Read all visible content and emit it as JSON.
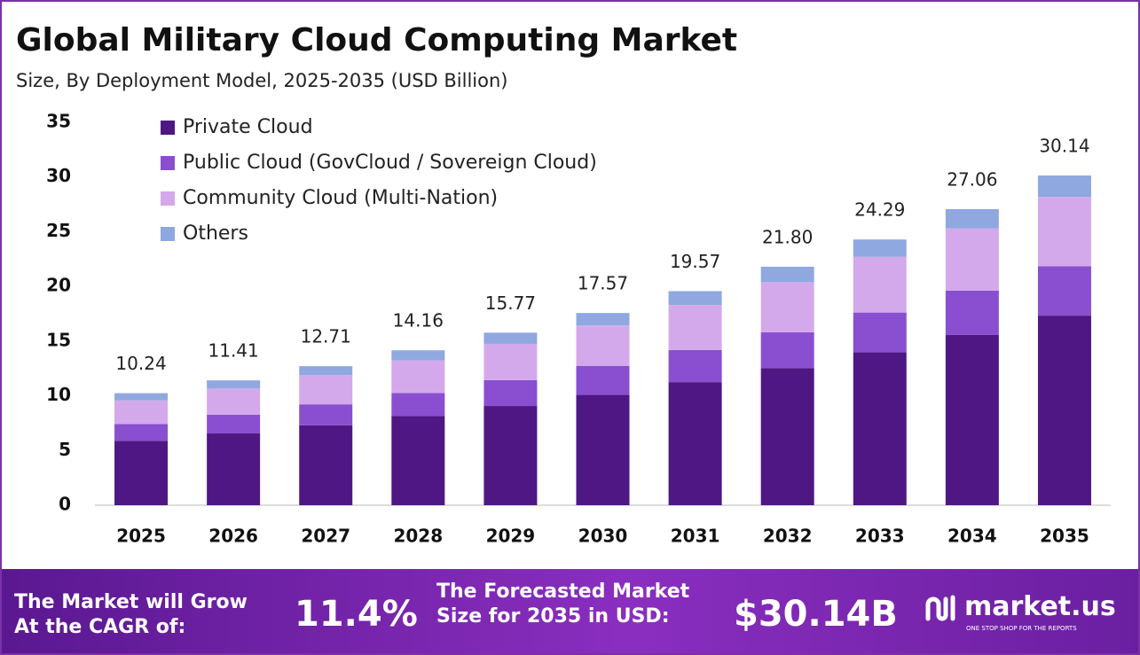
{
  "chart_data": {
    "type": "stacked-bar",
    "title": "Global Military Cloud Computing Market",
    "subtitle": "Size, By Deployment Model, 2025-2035 (USD Billion)",
    "categories": [
      "2025",
      "2026",
      "2027",
      "2028",
      "2029",
      "2030",
      "2031",
      "2032",
      "2033",
      "2034",
      "2035"
    ],
    "series": [
      {
        "name": "Private Cloud",
        "color": "#4f1783",
        "values": [
          5.89,
          6.56,
          7.31,
          8.14,
          9.07,
          10.1,
          11.25,
          12.54,
          13.97,
          15.56,
          17.33
        ]
      },
      {
        "name": "Public Cloud (GovCloud / Sovereign Cloud)",
        "color": "#8a4fd0",
        "values": [
          1.54,
          1.71,
          1.91,
          2.12,
          2.37,
          2.64,
          2.94,
          3.27,
          3.64,
          4.06,
          4.52
        ]
      },
      {
        "name": "Community Cloud (Multi-Nation)",
        "color": "#d4a9ec",
        "values": [
          2.15,
          2.4,
          2.67,
          2.97,
          3.31,
          3.69,
          4.11,
          4.58,
          5.1,
          5.68,
          6.33
        ]
      },
      {
        "name": "Others",
        "color": "#8fa8e0",
        "values": [
          0.66,
          0.74,
          0.82,
          0.93,
          1.02,
          1.14,
          1.27,
          1.41,
          1.58,
          1.76,
          1.96
        ]
      }
    ],
    "totals": [
      "10.24",
      "11.41",
      "12.71",
      "14.16",
      "15.77",
      "17.57",
      "19.57",
      "21.80",
      "24.29",
      "27.06",
      "30.14"
    ],
    "ylim": [
      0,
      35
    ],
    "yticks": [
      0,
      5,
      10,
      15,
      20,
      25,
      30,
      35
    ],
    "grid": false,
    "legend": "top-left"
  },
  "footer": {
    "cagr_text": "The Market will Grow At the CAGR of:",
    "cagr": "11.4%",
    "forecast_text": "The Forecasted Market Size for 2035 in USD:",
    "forecast": "$30.14B",
    "brand": "market.us",
    "tagline": "ONE STOP SHOP FOR THE REPORTS"
  }
}
